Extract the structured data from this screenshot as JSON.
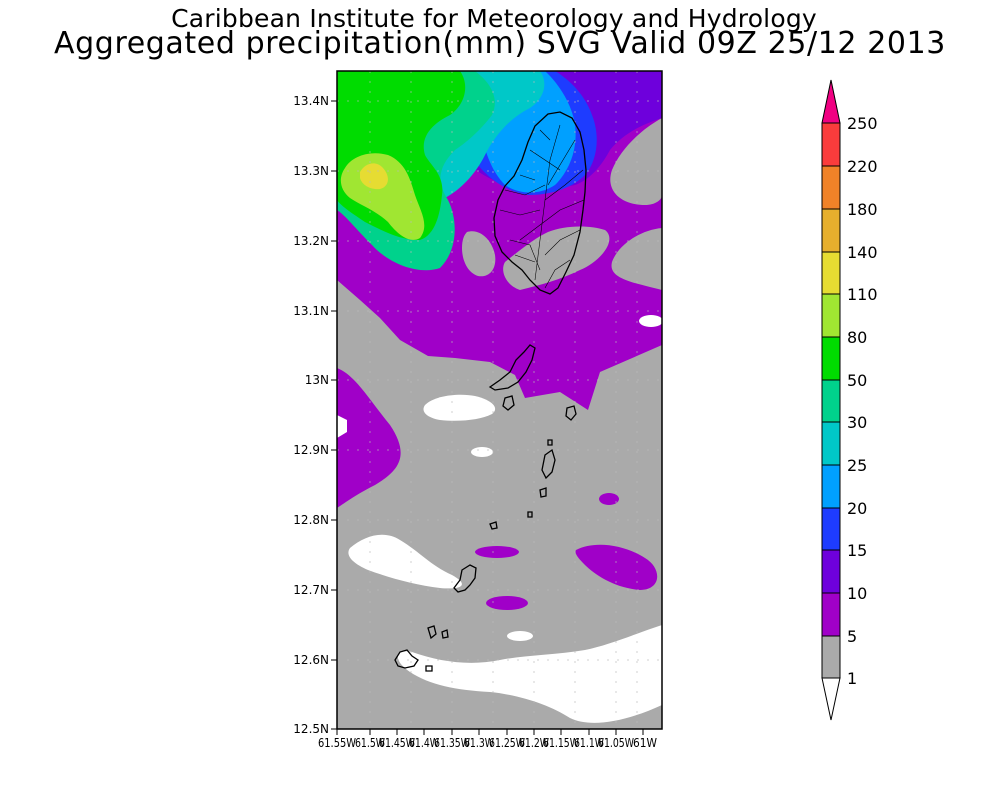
{
  "title_line1": "Caribbean Institute for Meteorology and Hydrology",
  "title_line2": "Aggregated precipitation(mm) SVG Valid 09Z 25/12 2013",
  "map": {
    "lon_range": [
      -61.55,
      -61.0
    ],
    "lat_range": [
      12.5,
      13.45
    ],
    "lat_ticks": [
      "13.4N",
      "13.3N",
      "13.2N",
      "13.1N",
      "13N",
      "12.9N",
      "12.8N",
      "12.7N",
      "12.6N",
      "12.5N"
    ],
    "lon_ticks": [
      "61.55W",
      "61.5W",
      "61.45W",
      "61.4W",
      "61.35W",
      "61.3W",
      "61.25W",
      "61.2W",
      "61.15W",
      "61.1W",
      "61.05W",
      "61W"
    ],
    "grid": "dotted"
  },
  "legend": {
    "labels": [
      "1",
      "5",
      "10",
      "15",
      "20",
      "25",
      "30",
      "50",
      "80",
      "110",
      "140",
      "180",
      "220",
      "250"
    ],
    "colors": [
      "#ffffff",
      "#aaaaaa",
      "#a000c8",
      "#6e00dc",
      "#1e3cff",
      "#00a0ff",
      "#00c8c8",
      "#00d28c",
      "#00dc00",
      "#a0e632",
      "#e6dc32",
      "#e6af2d",
      "#f08228",
      "#fa3c3c",
      "#f00082"
    ]
  },
  "colors": {
    "white": "#ffffff",
    "gray": "#aaaaaa",
    "purple": "#a000c8",
    "violet": "#6e00dc",
    "blue": "#1e3cff",
    "lightblue": "#00a0ff",
    "cyan": "#00c8c8",
    "teal": "#00d28c",
    "green": "#00dc00",
    "lime": "#a0e632",
    "yellow": "#e6dc32",
    "coastline": "#000000"
  }
}
